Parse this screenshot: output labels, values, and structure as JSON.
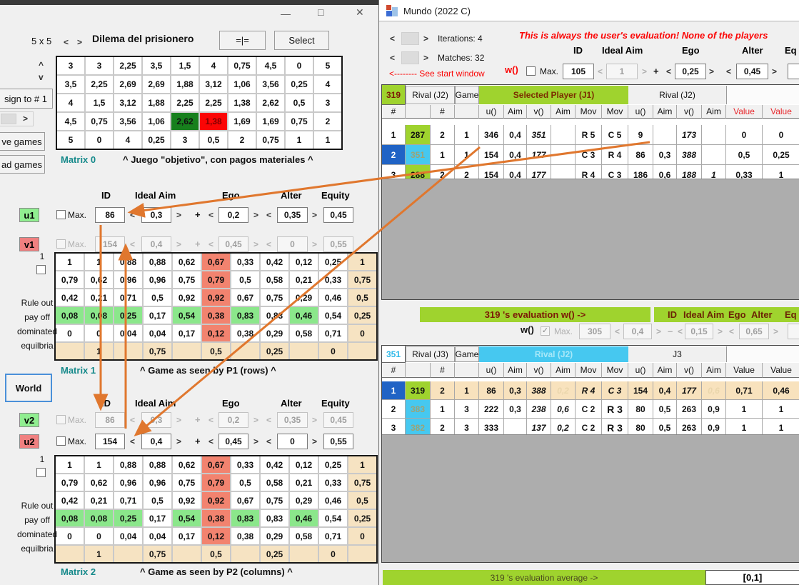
{
  "colors": {
    "lime": "#9fd32e",
    "cyan": "#46c8f0",
    "selected_blue": "#2063c5",
    "matrix_green": "#8be78b",
    "matrix_salmon": "#f2836f",
    "matrix_tan": "#f6e3c2",
    "matrix0_win_green": "#17801d",
    "matrix0_lose_red": "#fb0505",
    "arrow_orange": "#e0772e",
    "teal_label": "#15898a",
    "maroon": "#7b1a06",
    "label_green": "#90ee90",
    "label_red": "#f08080",
    "grid_gray": "#adadad"
  },
  "ui": {
    "spin_prev": "<",
    "spin_next": ">",
    "check_glyph": "✓"
  },
  "left_window": {
    "titlebar": {
      "minimize": "—",
      "maximize": "□",
      "close": "✕"
    },
    "toolbar": {
      "size": "5 x 5",
      "prev": "<",
      "next": ">",
      "title": "Dilema del prisionero",
      "sync_button": "=|=",
      "select_button": "Select",
      "row_up": "^",
      "row_down": "v"
    },
    "side": {
      "assign_button": "sign to # 1",
      "scroll_arrow": ">",
      "save_button": "ve games",
      "load_button": "ad games"
    },
    "param_headers": {
      "id": "ID",
      "ideal_aim": "Ideal Aim",
      "ego": "Ego",
      "alter": "Alter",
      "equity": "Equity"
    },
    "rows": {
      "u1": {
        "label": "u1",
        "max": "Max.",
        "id": "86",
        "ideal": "0,3",
        "op": "+",
        "ego": "0,2",
        "alter": "0,35",
        "equity": "0,45"
      },
      "v1": {
        "label": "v1",
        "max": "Max.",
        "id": "154",
        "ideal": "0,4",
        "op": "+",
        "ego": "0,45",
        "alter": "0",
        "equity": "0,55"
      },
      "v2": {
        "label": "v2",
        "max": "Max.",
        "id": "86",
        "ideal": "0,3",
        "op": "+",
        "ego": "0,2",
        "alter": "0,35",
        "equity": "0,45"
      },
      "u2": {
        "label": "u2",
        "max": "Max.",
        "id": "154",
        "ideal": "0,4",
        "op": "+",
        "ego": "0,45",
        "alter": "0",
        "equity": "0,55"
      }
    },
    "side_panel": {
      "index": "1",
      "rule_out": "Rule out\npay off\ndominated\nequilbria"
    },
    "matrix0": {
      "label": "Matrix 0",
      "caption": "^ Juego \"objetivo\", con pagos materiales ^",
      "rows": [
        [
          "3",
          "3",
          "2,25",
          "3,5",
          "1,5",
          "4",
          "0,75",
          "4,5",
          "0",
          "5"
        ],
        [
          "3,5",
          "2,25",
          "2,69",
          "2,69",
          "1,88",
          "3,12",
          "1,06",
          "3,56",
          "0,25",
          "4"
        ],
        [
          "4",
          "1,5",
          "3,12",
          "1,88",
          "2,25",
          "2,25",
          "1,38",
          "2,62",
          "0,5",
          "3"
        ],
        [
          "4,5",
          "0,75",
          "3,56",
          "1,06",
          {
            "v": "2,62",
            "c": "win"
          },
          {
            "v": "1,38",
            "c": "lose"
          },
          "1,69",
          "1,69",
          "0,75",
          "2"
        ],
        [
          "5",
          "0",
          "4",
          "0,25",
          "3",
          "0,5",
          "2",
          "0,75",
          "1",
          "1"
        ]
      ]
    },
    "unit_matrix_rows": [
      [
        "1",
        "1",
        "0,88",
        "0,88",
        "0,62",
        {
          "v": "0,67",
          "c": "salmon"
        },
        "0,33",
        "0,42",
        "0,12",
        "0,25",
        {
          "v": "1",
          "c": "tan"
        }
      ],
      [
        "0,79",
        "0,62",
        "0,96",
        "0,96",
        "0,75",
        {
          "v": "0,79",
          "c": "salmon"
        },
        "0,5",
        "0,58",
        "0,21",
        "0,33",
        {
          "v": "0,75",
          "c": "tan"
        }
      ],
      [
        "0,42",
        "0,21",
        "0,71",
        "0,5",
        "0,92",
        {
          "v": "0,92",
          "c": "salmon"
        },
        "0,67",
        "0,75",
        "0,29",
        "0,46",
        {
          "v": "0,5",
          "c": "tan"
        }
      ],
      [
        {
          "v": "0,08",
          "c": "green"
        },
        {
          "v": "0,08",
          "c": "green"
        },
        {
          "v": "0,25",
          "c": "green"
        },
        "0,17",
        {
          "v": "0,54",
          "c": "green"
        },
        {
          "v": "0,38",
          "c": "salmon"
        },
        {
          "v": "0,83",
          "c": "green"
        },
        "0,83",
        {
          "v": "0,46",
          "c": "green"
        },
        "0,54",
        {
          "v": "0,25",
          "c": "tan"
        }
      ],
      [
        "0",
        "0",
        "0,04",
        "0,04",
        "0,17",
        {
          "v": "0,12",
          "c": "salmon"
        },
        "0,38",
        "0,29",
        "0,58",
        "0,71",
        {
          "v": "0",
          "c": "tan"
        }
      ],
      [
        {
          "v": "",
          "c": "tan"
        },
        {
          "v": "1",
          "c": "tan"
        },
        {
          "v": "",
          "c": "tan"
        },
        {
          "v": "0,75",
          "c": "tan"
        },
        {
          "v": "",
          "c": "tan"
        },
        {
          "v": "0,5",
          "c": "tan"
        },
        {
          "v": "",
          "c": "tan"
        },
        {
          "v": "0,25",
          "c": "tan"
        },
        {
          "v": "",
          "c": "tan"
        },
        {
          "v": "0",
          "c": "tan"
        },
        {
          "v": "",
          "c": "tan"
        }
      ]
    ],
    "matrix1": {
      "label": "Matrix 1",
      "caption": "^ Game as seen by P1 (rows) ^"
    },
    "world_button": "World",
    "matrix2": {
      "label": "Matrix 2",
      "caption": "^ Game as seen by P2 (columns) ^"
    }
  },
  "right_window": {
    "title": "Mundo (2022 C)",
    "iterations": {
      "prev": "<",
      "next": ">",
      "label": "Iterations: 4"
    },
    "matches": {
      "prev": "<",
      "next": ">",
      "label": "Matches: 32"
    },
    "note": "This is always the user's evaluation! None of the players",
    "see_start": "<-------- See start window",
    "headers": {
      "id": "ID",
      "ideal_aim": "Ideal Aim",
      "ego": "Ego",
      "alter": "Alter",
      "equity": "Eq"
    },
    "w_top": {
      "label": "w()",
      "max": "Max.",
      "id": "105",
      "ideal": "1",
      "op": "+",
      "ego": "0,25",
      "alter": "0,45",
      "equity_partial": "0"
    },
    "eval_bar": {
      "label": "319 's evaluation w() ->",
      "headers": {
        "id": "ID",
        "ideal_aim": "Ideal Aim",
        "ego": "Ego",
        "alter": "Alter",
        "equity": "Eq"
      }
    },
    "w_mid": {
      "label": "w()",
      "max": "Max.",
      "id": "305",
      "ideal": "0,4",
      "op": "–",
      "ego": "0,15",
      "alter": "0,65",
      "equity_partial": ""
    },
    "table1": {
      "corner": "319",
      "rival": "Rival (J2)",
      "game": "Game",
      "band": "Selected Player (J1)",
      "right_label": "Rival (J2)",
      "col_headers": [
        "#",
        "",
        "#",
        "",
        "u()",
        "Aim",
        "v()",
        "Aim",
        "Mov",
        "Mov",
        "u()",
        "Aim",
        "v()",
        "Aim",
        "Value",
        "Value"
      ],
      "value_header_red": true,
      "rows": [
        {
          "cells": [
            "1",
            {
              "v": "287",
              "c": "lime"
            },
            "2",
            "1",
            "346",
            "0,4",
            {
              "v": "351",
              "c": "i"
            },
            "",
            "R 5",
            "C 5",
            "9",
            "",
            {
              "v": "173",
              "c": "i"
            },
            "",
            "0",
            "0"
          ]
        },
        {
          "cells": [
            {
              "v": "2",
              "c": "sel"
            },
            {
              "v": "351",
              "c": "cyan"
            },
            "1",
            "1",
            "154",
            "0,4",
            {
              "v": "177",
              "c": "i"
            },
            "",
            "C 3",
            "R 4",
            "86",
            "0,3",
            {
              "v": "388",
              "c": "i"
            },
            "",
            "0,5",
            "0,25"
          ]
        },
        {
          "cells": [
            "3",
            {
              "v": "288",
              "c": "lime"
            },
            "2",
            "2",
            "154",
            "0,4",
            {
              "v": "177",
              "c": "i"
            },
            "",
            "R 4",
            "C 3",
            "186",
            "0,6",
            {
              "v": "188",
              "c": "i"
            },
            {
              "v": "1",
              "c": "i"
            },
            "0,33",
            "1"
          ]
        }
      ]
    },
    "table2": {
      "corner": "351",
      "rival": "Rival (J3)",
      "game": "Game",
      "band": "Rival (J2)",
      "right_label": "J3",
      "col_headers": [
        "#",
        "",
        "#",
        "",
        "u()",
        "Aim",
        "v()",
        "Aim",
        "Mov",
        "Mov",
        "u()",
        "Aim",
        "v()",
        "Aim",
        "Value",
        "Value"
      ],
      "value_header_red": false,
      "rows": [
        {
          "hl": true,
          "cells": [
            {
              "v": "1",
              "c": "sel"
            },
            {
              "v": "319",
              "c": "lime"
            },
            "2",
            "1",
            "86",
            "0,3",
            {
              "v": "388",
              "c": "i"
            },
            {
              "v": "0,2",
              "c": "faint i"
            },
            {
              "v": "R 4",
              "c": "i"
            },
            {
              "v": "C 3",
              "c": "i"
            },
            "154",
            "0,4",
            {
              "v": "177",
              "c": "i"
            },
            {
              "v": "0,6",
              "c": "faint i"
            },
            "0,71",
            "0,46"
          ]
        },
        {
          "cells": [
            "2",
            {
              "v": "383",
              "c": "cyan"
            },
            "1",
            "3",
            "222",
            "0,3",
            {
              "v": "238",
              "c": "i"
            },
            {
              "v": "0,6",
              "c": "i"
            },
            "C 2",
            {
              "v": "R 3",
              "c": "big"
            },
            "80",
            "0,5",
            "263",
            "0,9",
            "1",
            "1"
          ]
        },
        {
          "cells": [
            "3",
            {
              "v": "382",
              "c": "cyan"
            },
            "2",
            "3",
            "333",
            "",
            {
              "v": "137",
              "c": "i"
            },
            {
              "v": "0,2",
              "c": "i"
            },
            "C 2",
            {
              "v": "R 3",
              "c": "big"
            },
            "80",
            "0,5",
            "263",
            "0,9",
            "1",
            "1"
          ]
        }
      ]
    },
    "avg_bar": {
      "label": "319 's evaluation average ->",
      "value": "[0,1]"
    }
  }
}
